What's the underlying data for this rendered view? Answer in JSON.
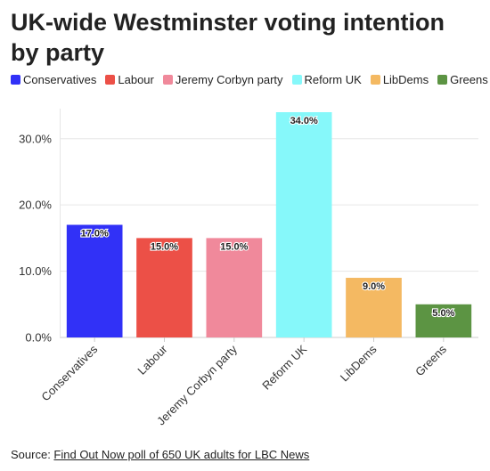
{
  "colors": {
    "Conservatives": "#3131f7",
    "Labour": "#ec5047",
    "Jeremy Corbyn party": "#f0899b",
    "Reform UK": "#86f8fa",
    "LibDems": "#f4b962",
    "Greens": "#5c9443"
  },
  "source": {
    "prefix": "Source: ",
    "link_text": "Find Out Now poll of 650 UK adults for LBC News"
  },
  "chart_data": {
    "type": "bar",
    "title": "UK-wide Westminster voting intention by party",
    "categories": [
      "Conservatives",
      "Labour",
      "Jeremy Corbyn party",
      "Reform UK",
      "LibDems",
      "Greens"
    ],
    "values": [
      17.0,
      15.0,
      15.0,
      34.0,
      9.0,
      5.0
    ],
    "data_labels": [
      "17.0%",
      "15.0%",
      "15.0%",
      "34.0%",
      "9.0%",
      "5.0%"
    ],
    "yticks": [
      0,
      10,
      20,
      30
    ],
    "ytick_labels": [
      "0.0%",
      "10.0%",
      "20.0%",
      "30.0%"
    ],
    "ylim": [
      0,
      34
    ],
    "xlabel": "",
    "ylabel": "",
    "grid": true,
    "legend_position": "top"
  }
}
